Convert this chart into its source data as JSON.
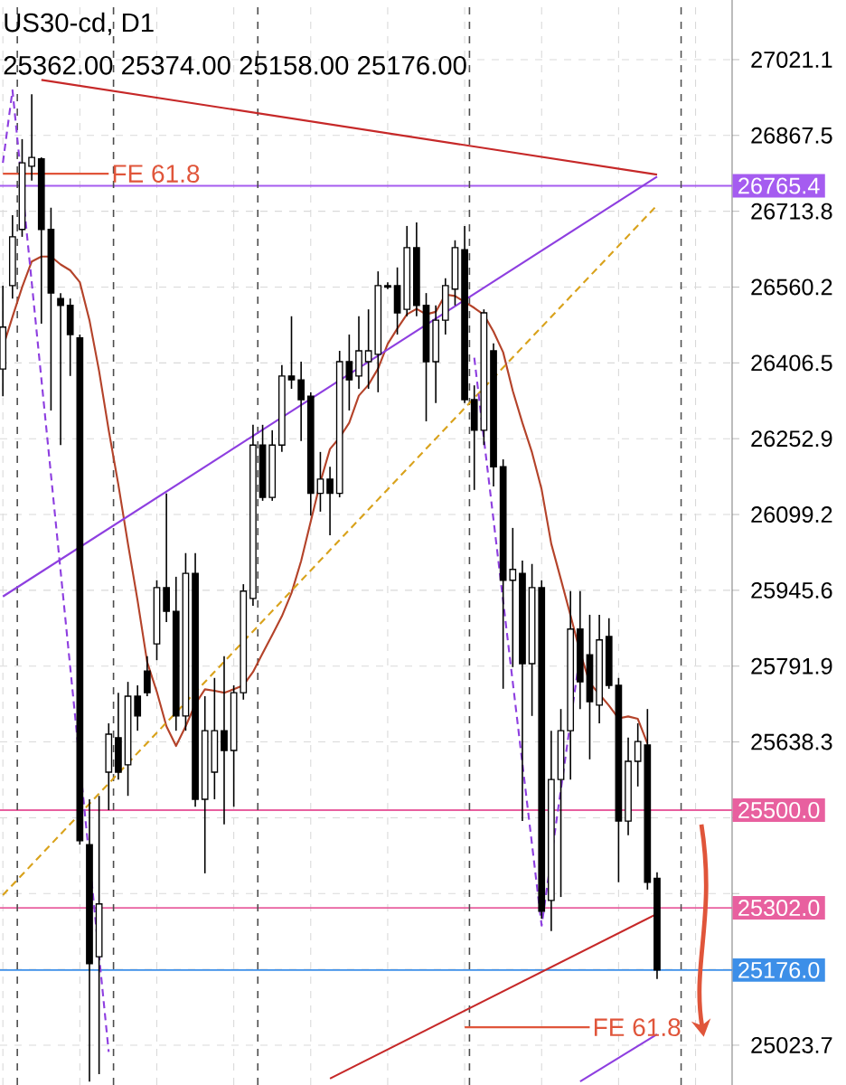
{
  "chart_data": {
    "type": "candlestick",
    "title": "US30-cd, D1",
    "subtitle": "25362.00 25374.00 25158.00 25176.00",
    "categories": [
      null,
      null,
      null,
      null,
      null,
      null,
      null,
      null,
      null,
      null,
      null,
      null,
      null,
      null,
      null,
      null,
      null,
      null,
      null,
      null,
      null,
      null,
      null,
      null,
      null,
      null,
      null,
      null,
      null,
      null,
      null,
      null,
      null,
      null,
      null,
      null,
      null,
      null,
      null,
      null,
      null,
      null,
      null,
      null,
      null,
      null,
      null,
      null,
      null,
      null,
      null,
      null,
      null,
      null,
      null,
      null,
      null,
      null,
      null,
      null,
      null,
      null,
      null,
      null,
      null,
      null,
      null,
      null,
      null
    ],
    "ohlc": [
      [
        26394,
        26563,
        26339,
        26479
      ],
      [
        26563,
        26706,
        26537,
        26662
      ],
      [
        26677,
        26860,
        26662,
        26812
      ],
      [
        26805,
        26951,
        26776,
        26823
      ],
      [
        26820,
        26823,
        26486,
        26677
      ],
      [
        26677,
        26721,
        26310,
        26548
      ],
      [
        26537,
        26548,
        26240,
        26523
      ],
      [
        26523,
        26537,
        26380,
        26464
      ],
      [
        26457,
        26464,
        25430,
        25438
      ],
      [
        25430,
        25522,
        24950,
        25189
      ],
      [
        25203,
        25529,
        24965,
        25310
      ],
      [
        25577,
        25676,
        25500,
        25654
      ],
      [
        25647,
        25738,
        25562,
        25577
      ],
      [
        25592,
        25760,
        25529,
        25731
      ],
      [
        25731,
        25753,
        25661,
        25691
      ],
      [
        25782,
        25812,
        25731,
        25738
      ],
      [
        25837,
        25966,
        25804,
        25951
      ],
      [
        25951,
        26142,
        25881,
        25903
      ],
      [
        25903,
        25973,
        25661,
        25691
      ],
      [
        25691,
        26021,
        25661,
        25980
      ],
      [
        25980,
        26021,
        25507,
        25522
      ],
      [
        25522,
        25731,
        25372,
        25661
      ],
      [
        25577,
        25768,
        25522,
        25661
      ],
      [
        25661,
        25812,
        25471,
        25621
      ],
      [
        25621,
        25753,
        25507,
        25738
      ],
      [
        25738,
        25958,
        25724,
        25944
      ],
      [
        25929,
        26281,
        25914,
        26240
      ],
      [
        26240,
        26281,
        26127,
        26134
      ],
      [
        26134,
        26270,
        26127,
        26240
      ],
      [
        26240,
        26402,
        26226,
        26380
      ],
      [
        26380,
        26501,
        26354,
        26372
      ],
      [
        26372,
        26409,
        26248,
        26332
      ],
      [
        26339,
        26347,
        26097,
        26142
      ],
      [
        26142,
        26226,
        26105,
        26171
      ],
      [
        26171,
        26196,
        26057,
        26142
      ],
      [
        26142,
        26431,
        26134,
        26409
      ],
      [
        26409,
        26464,
        26310,
        26372
      ],
      [
        26380,
        26501,
        26354,
        26431
      ],
      [
        26409,
        26515,
        26354,
        26431
      ],
      [
        26424,
        26592,
        26347,
        26563
      ],
      [
        26563,
        26570,
        26556,
        26560
      ],
      [
        26563,
        26600,
        26464,
        26508
      ],
      [
        26515,
        26684,
        26501,
        26640
      ],
      [
        26640,
        26691,
        26501,
        26523
      ],
      [
        26523,
        26548,
        26288,
        26409
      ],
      [
        26409,
        26523,
        26325,
        26493
      ],
      [
        26493,
        26578,
        26464,
        26563
      ],
      [
        26556,
        26655,
        26523,
        26640
      ],
      [
        26636,
        26684,
        26325,
        26332
      ],
      [
        26332,
        26361,
        26149,
        26270
      ],
      [
        26270,
        26515,
        26240,
        26508
      ],
      [
        26431,
        26446,
        26156,
        26196
      ],
      [
        26196,
        26211,
        25746,
        25966
      ],
      [
        25966,
        26072,
        25790,
        25988
      ],
      [
        25980,
        26006,
        25478,
        25797
      ],
      [
        25797,
        25999,
        25691,
        25951
      ],
      [
        25951,
        25966,
        25280,
        25295
      ],
      [
        25317,
        25661,
        25255,
        25562
      ],
      [
        25562,
        25705,
        25324,
        25661
      ],
      [
        25661,
        25944,
        25562,
        25867
      ],
      [
        25867,
        25944,
        25705,
        25760
      ],
      [
        25815,
        25896,
        25603,
        25720
      ],
      [
        25713,
        25896,
        25676,
        25845
      ],
      [
        25852,
        25889,
        25746,
        25753
      ],
      [
        25753,
        25768,
        25354,
        25478
      ],
      [
        25478,
        25647,
        25449,
        25599
      ],
      [
        25599,
        25676,
        25548,
        25639
      ],
      [
        25632,
        25705,
        25339,
        25354
      ],
      [
        25362,
        25374,
        25158,
        25176
      ]
    ],
    "series": [
      {
        "type": "line",
        "color": "#b4432a",
        "values": [
          26438,
          26500,
          26560,
          26612,
          26622,
          26622,
          26606,
          26594,
          26570,
          26493,
          26390,
          26270,
          26160,
          26040,
          25925,
          25800,
          25740,
          25670,
          25630,
          25670,
          25715,
          25745,
          25742,
          25738,
          25745,
          25753,
          25780,
          25818,
          25855,
          25893,
          25940,
          26005,
          26085,
          26165,
          26232,
          26255,
          26285,
          26340,
          26362,
          26395,
          26445,
          26476,
          26505,
          26516,
          26505,
          26510,
          26545,
          26542,
          26530,
          26518,
          26504,
          26470,
          26428,
          26350,
          26285,
          26225,
          26150,
          26040,
          25968,
          25895,
          25820,
          25758,
          25735,
          25712,
          25686,
          25690,
          25685,
          25635,
          null
        ]
      },
      {
        "type": "line",
        "color": "#c62828",
        "values": [
          null,
          null,
          null,
          null,
          26980,
          null,
          null,
          null,
          null,
          null,
          null,
          null,
          null,
          null,
          null,
          null,
          null,
          null,
          null,
          null,
          null,
          null,
          null,
          null,
          null,
          null,
          null,
          null,
          null,
          null,
          null,
          null,
          null,
          null,
          null,
          null,
          null,
          null,
          null,
          null,
          null,
          null,
          null,
          null,
          null,
          null,
          null,
          null,
          null,
          null,
          null,
          null,
          null,
          null,
          null,
          null,
          null,
          null,
          null,
          null,
          null,
          null,
          null,
          null,
          null,
          null,
          null,
          null,
          26788
        ]
      },
      {
        "type": "line",
        "color": "#8e3fe0",
        "values": [
          25933,
          null,
          null,
          null,
          null,
          null,
          null,
          null,
          null,
          null,
          null,
          null,
          null,
          null,
          null,
          null,
          null,
          null,
          null,
          null,
          null,
          null,
          null,
          null,
          null,
          null,
          null,
          null,
          null,
          null,
          null,
          null,
          null,
          null,
          null,
          null,
          null,
          null,
          null,
          null,
          null,
          null,
          null,
          null,
          null,
          null,
          null,
          null,
          null,
          null,
          null,
          null,
          null,
          null,
          null,
          null,
          null,
          null,
          null,
          null,
          null,
          null,
          null,
          null,
          null,
          null,
          null,
          null,
          26784
        ]
      },
      {
        "type": "line",
        "color": "#d9a21b",
        "line_style": "dashed",
        "values": [
          25328,
          null,
          null,
          null,
          null,
          null,
          null,
          null,
          null,
          null,
          null,
          null,
          null,
          null,
          null,
          null,
          null,
          null,
          null,
          null,
          null,
          null,
          null,
          null,
          null,
          null,
          null,
          null,
          null,
          null,
          null,
          null,
          null,
          null,
          null,
          null,
          null,
          null,
          null,
          null,
          null,
          null,
          null,
          null,
          null,
          null,
          null,
          null,
          null,
          null,
          null,
          null,
          null,
          null,
          null,
          null,
          null,
          null,
          null,
          null,
          null,
          null,
          null,
          null,
          null,
          null,
          null,
          null,
          26726
        ]
      },
      {
        "type": "line",
        "color": "#8e3fe0",
        "values": [
          null,
          null,
          null,
          null,
          null,
          null,
          null,
          null,
          null,
          null,
          null,
          null,
          null,
          null,
          null,
          null,
          null,
          null,
          null,
          null,
          null,
          null,
          null,
          null,
          null,
          null,
          null,
          null,
          null,
          null,
          null,
          null,
          null,
          null,
          null,
          null,
          null,
          null,
          null,
          null,
          null,
          null,
          null,
          null,
          null,
          null,
          null,
          null,
          null,
          null,
          null,
          null,
          null,
          null,
          null,
          null,
          null,
          null,
          null,
          null,
          24950,
          null,
          null,
          null,
          null,
          null,
          null,
          null,
          25046
        ]
      },
      {
        "type": "line",
        "color": "#c62828",
        "values": [
          null,
          null,
          null,
          null,
          null,
          null,
          null,
          null,
          null,
          null,
          null,
          null,
          null,
          null,
          null,
          null,
          null,
          null,
          null,
          null,
          null,
          null,
          null,
          null,
          null,
          null,
          null,
          null,
          null,
          null,
          null,
          null,
          null,
          null,
          24956,
          null,
          null,
          null,
          null,
          null,
          null,
          null,
          null,
          null,
          null,
          null,
          null,
          null,
          null,
          null,
          null,
          null,
          null,
          null,
          null,
          null,
          null,
          null,
          null,
          null,
          null,
          null,
          null,
          null,
          null,
          null,
          null,
          null,
          25290
        ]
      },
      {
        "type": "line",
        "color": "#8e3fe0",
        "line_style": "dashed",
        "values": [
          26812,
          26959,
          null,
          null,
          null,
          null,
          null,
          null,
          null,
          null,
          null,
          25010,
          null,
          null,
          null,
          null,
          null,
          null,
          null,
          null,
          null,
          null,
          null,
          null,
          null,
          null,
          null,
          null,
          null,
          null,
          null,
          null,
          null,
          null,
          null,
          null,
          null,
          null,
          null,
          null,
          null,
          null,
          null,
          null,
          null,
          null,
          null,
          null,
          null,
          null,
          null,
          null,
          null,
          null,
          null,
          null,
          null,
          null,
          null,
          null,
          null,
          null,
          null,
          null,
          null,
          null,
          null,
          null,
          null
        ]
      },
      {
        "type": "line",
        "color": "#8e3fe0",
        "line_style": "dashed",
        "values": [
          null,
          null,
          null,
          null,
          null,
          null,
          null,
          null,
          null,
          null,
          null,
          null,
          null,
          null,
          null,
          null,
          null,
          null,
          null,
          null,
          null,
          null,
          null,
          null,
          null,
          null,
          null,
          null,
          null,
          null,
          null,
          null,
          null,
          null,
          null,
          null,
          null,
          null,
          null,
          null,
          null,
          null,
          null,
          null,
          null,
          null,
          null,
          null,
          null,
          26417,
          null,
          null,
          null,
          null,
          null,
          null,
          25266,
          null,
          null,
          null,
          25817,
          null,
          null,
          null,
          null,
          null,
          null,
          null,
          null
        ]
      },
      {
        "type": "line",
        "color": "#e0553a",
        "values": [
          26790,
          null,
          null,
          null,
          null,
          null,
          null,
          null,
          null,
          null,
          null,
          26790,
          null,
          null,
          null,
          null,
          null,
          null,
          null,
          null,
          null,
          null,
          null,
          null,
          null,
          null,
          null,
          null,
          null,
          null,
          null,
          null,
          null,
          null,
          null,
          null,
          null,
          null,
          null,
          null,
          null,
          null,
          null,
          null,
          null,
          null,
          null,
          null,
          null,
          null,
          null,
          null,
          null,
          null,
          null,
          null,
          null,
          null,
          null,
          null,
          null,
          null,
          null,
          null,
          null,
          null,
          null,
          null,
          null
        ]
      },
      {
        "type": "line",
        "color": "#e0553a",
        "values": [
          null,
          null,
          null,
          null,
          null,
          null,
          null,
          null,
          null,
          null,
          null,
          null,
          null,
          null,
          null,
          null,
          null,
          null,
          null,
          null,
          null,
          null,
          null,
          null,
          null,
          null,
          null,
          null,
          null,
          null,
          null,
          null,
          null,
          null,
          null,
          null,
          null,
          null,
          null,
          null,
          null,
          null,
          null,
          null,
          null,
          null,
          null,
          null,
          25060,
          null,
          null,
          null,
          null,
          null,
          null,
          null,
          null,
          null,
          null,
          null,
          null,
          25060,
          null,
          null,
          null,
          null,
          null,
          null,
          null
        ]
      }
    ],
    "ref_lines": [
      {
        "axis": "y",
        "value": 26765.4,
        "label": "26765.4",
        "color": "#a55cf0"
      },
      {
        "axis": "y",
        "value": 25500.0,
        "label": "25500.0",
        "color": "#e8609f"
      },
      {
        "axis": "y",
        "value": 25302.0,
        "label": "25302.0",
        "color": "#e8609f"
      },
      {
        "axis": "y",
        "value": 25176.0,
        "label": "25176.0",
        "color": "#3d8fe8"
      }
    ],
    "annotations": [
      "FE 61.8",
      "FE 61.8"
    ],
    "ylim": [
      24943,
      27142
    ],
    "yticks": [
      27021.1,
      26867.5,
      26713.8,
      26560.2,
      26406.5,
      26252.9,
      26099.2,
      25945.6,
      25791.9,
      25638.3,
      {
        "value": 25484.6,
        "label": null
      },
      {
        "value": 25331.0,
        "label": null
      },
      {
        "value": 25177.4,
        "label": null
      },
      25023.7
    ],
    "grid": true,
    "tick_labels": "y"
  }
}
